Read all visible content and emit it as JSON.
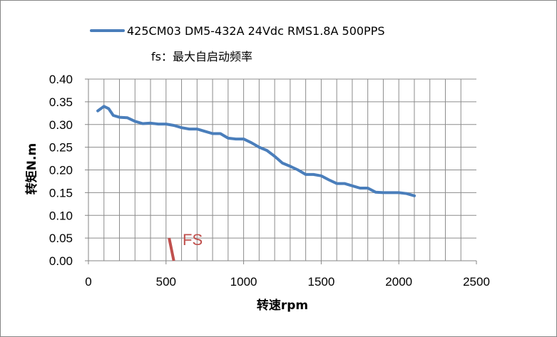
{
  "chart_data": {
    "type": "line",
    "title": "",
    "xlabel": "转速rpm",
    "ylabel": "转矩N.m",
    "xlim": [
      0,
      2500
    ],
    "ylim": [
      0,
      0.4
    ],
    "x_ticks": [
      0,
      500,
      1000,
      1500,
      2000,
      2500
    ],
    "y_ticks": [
      0.0,
      0.05,
      0.1,
      0.15,
      0.2,
      0.25,
      0.3,
      0.35,
      0.4
    ],
    "x_tick_labels": [
      "0",
      "500",
      "1000",
      "1500",
      "2000",
      "2500"
    ],
    "y_tick_labels": [
      "0.00",
      "0.05",
      "0.10",
      "0.15",
      "0.20",
      "0.25",
      "0.30",
      "0.35",
      "0.40"
    ],
    "grid": true,
    "legend_position": "top",
    "series": [
      {
        "name": "425CM03 DM5-432A 24Vdc RMS1.8A 500PPS",
        "color": "#4a7ebb",
        "x": [
          60,
          100,
          130,
          160,
          200,
          250,
          300,
          350,
          400,
          450,
          500,
          550,
          600,
          650,
          700,
          750,
          800,
          850,
          900,
          950,
          1000,
          1050,
          1100,
          1150,
          1200,
          1250,
          1300,
          1350,
          1400,
          1450,
          1500,
          1550,
          1600,
          1650,
          1700,
          1750,
          1800,
          1850,
          1900,
          1950,
          2000,
          2050,
          2100
        ],
        "y": [
          0.33,
          0.34,
          0.335,
          0.32,
          0.316,
          0.315,
          0.307,
          0.302,
          0.303,
          0.301,
          0.301,
          0.298,
          0.293,
          0.29,
          0.29,
          0.285,
          0.28,
          0.28,
          0.27,
          0.268,
          0.268,
          0.26,
          0.25,
          0.243,
          0.23,
          0.215,
          0.208,
          0.2,
          0.19,
          0.19,
          0.187,
          0.178,
          0.17,
          0.17,
          0.165,
          0.16,
          0.16,
          0.151,
          0.15,
          0.15,
          0.15,
          0.148,
          0.143
        ]
      }
    ],
    "annotations": [
      {
        "text": "fs：最大自启动频率"
      },
      {
        "text": "FS",
        "color": "#c0504d",
        "marker_x": [
          520,
          550
        ],
        "marker_y": [
          0.05,
          0.0
        ]
      }
    ]
  }
}
